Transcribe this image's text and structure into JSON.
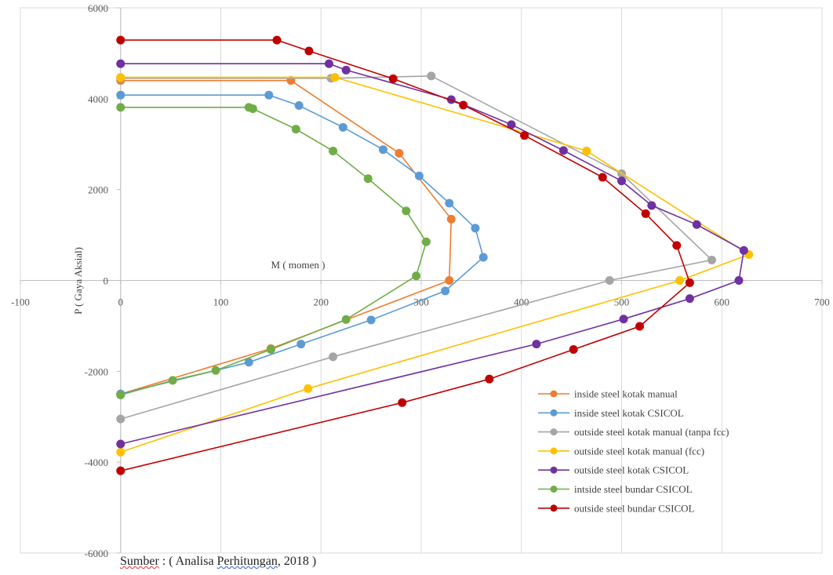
{
  "chart_data": {
    "type": "line",
    "xlabel": "M ( momen )",
    "ylabel": "P ( Gaya Aksial)",
    "xlim": [
      -100,
      700
    ],
    "ylim": [
      -6000,
      6000
    ],
    "x_ticks": [
      -100,
      0,
      100,
      200,
      300,
      400,
      500,
      600,
      700
    ],
    "y_ticks": [
      -6000,
      -4000,
      -2000,
      0,
      2000,
      4000,
      6000
    ],
    "grid": "vertical",
    "legend_position": "bottom-right",
    "series": [
      {
        "name": "inside steel kotak manual",
        "color": "#ED7D31",
        "points": [
          [
            0,
            4400
          ],
          [
            170,
            4400
          ],
          [
            278,
            2800
          ],
          [
            330,
            1350
          ],
          [
            328,
            0
          ],
          [
            150,
            -1500
          ],
          [
            0,
            -2500
          ]
        ]
      },
      {
        "name": "inside steel kotak CSICOL",
        "color": "#5B9BD5",
        "points": [
          [
            0,
            4080
          ],
          [
            148,
            4080
          ],
          [
            178,
            3850
          ],
          [
            222,
            3370
          ],
          [
            262,
            2880
          ],
          [
            298,
            2300
          ],
          [
            328,
            1700
          ],
          [
            354,
            1150
          ],
          [
            362,
            510
          ],
          [
            324,
            -230
          ],
          [
            250,
            -870
          ],
          [
            180,
            -1400
          ],
          [
            128,
            -1800
          ],
          [
            0,
            -2500
          ]
        ]
      },
      {
        "name": "outside steel kotak manual (tanpa fcc)",
        "color": "#A5A5A5",
        "points": [
          [
            0,
            4450
          ],
          [
            210,
            4450
          ],
          [
            310,
            4500
          ],
          [
            500,
            2350
          ],
          [
            590,
            450
          ],
          [
            488,
            0
          ],
          [
            212,
            -1680
          ],
          [
            0,
            -3050
          ]
        ]
      },
      {
        "name": "outside steel kotak manual (fcc)",
        "color": "#FFC000",
        "points": [
          [
            0,
            4470
          ],
          [
            214,
            4470
          ],
          [
            465,
            2850
          ],
          [
            627,
            570
          ],
          [
            558,
            0
          ],
          [
            187,
            -2380
          ],
          [
            0,
            -3780
          ]
        ]
      },
      {
        "name": "outside steel kotak CSICOL",
        "color": "#7030A0",
        "points": [
          [
            0,
            4770
          ],
          [
            208,
            4770
          ],
          [
            225,
            4630
          ],
          [
            330,
            3980
          ],
          [
            390,
            3430
          ],
          [
            442,
            2860
          ],
          [
            500,
            2190
          ],
          [
            530,
            1650
          ],
          [
            575,
            1230
          ],
          [
            622,
            660
          ],
          [
            617,
            0
          ],
          [
            568,
            -400
          ],
          [
            502,
            -850
          ],
          [
            415,
            -1400
          ],
          [
            0,
            -3600
          ]
        ]
      },
      {
        "name": "intside steel bundar CSICOL",
        "color": "#70AD47",
        "points": [
          [
            0,
            3810
          ],
          [
            128,
            3810
          ],
          [
            132,
            3780
          ],
          [
            175,
            3330
          ],
          [
            212,
            2850
          ],
          [
            247,
            2240
          ],
          [
            285,
            1530
          ],
          [
            305,
            850
          ],
          [
            295,
            100
          ],
          [
            225,
            -860
          ],
          [
            150,
            -1520
          ],
          [
            95,
            -1980
          ],
          [
            52,
            -2200
          ],
          [
            0,
            -2520
          ]
        ]
      },
      {
        "name": "outside steel bundar CSICOL",
        "color": "#C00000",
        "points": [
          [
            0,
            5290
          ],
          [
            156,
            5290
          ],
          [
            188,
            5050
          ],
          [
            272,
            4440
          ],
          [
            342,
            3860
          ],
          [
            403,
            3190
          ],
          [
            481,
            2270
          ],
          [
            524,
            1470
          ],
          [
            555,
            770
          ],
          [
            568,
            -50
          ],
          [
            518,
            -1010
          ],
          [
            452,
            -1520
          ],
          [
            368,
            -2170
          ],
          [
            281,
            -2690
          ],
          [
            0,
            -4190
          ]
        ]
      }
    ]
  },
  "source": {
    "label": "Sumber",
    "separator": " : ( ",
    "text1": "Analisa",
    "text2": " ",
    "text3": "Perhitungan",
    "text4": ", 2018 )"
  }
}
